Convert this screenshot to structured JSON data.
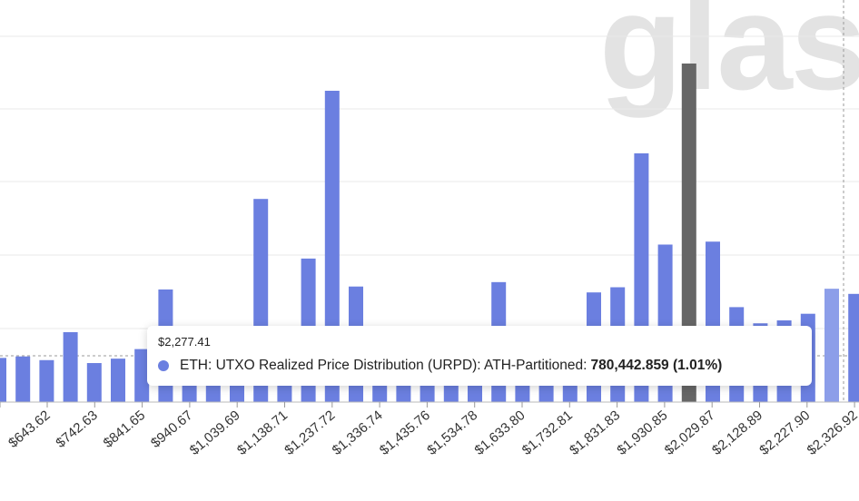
{
  "watermark": "glass",
  "colors": {
    "bar": "#6b7fe0",
    "bar_highlight": "#666666",
    "bar_partial": "#8c9ee9",
    "grid": "#e8e8e8"
  },
  "tooltip": {
    "x_value": "$2,277.41",
    "series_label": "ETH: UTXO Realized Price Distribution (URPD): ATH-Partitioned:",
    "value": "780,442.859 (1.01%)"
  },
  "chart_data": {
    "type": "bar",
    "title": "",
    "xlabel": "",
    "ylabel": "",
    "grid": true,
    "highlight_index": 29,
    "ylim": [
      0,
      100
    ],
    "tick_labels": [
      "$643.62",
      "$742.63",
      "$841.65",
      "$940.67",
      "$1,039.69",
      "$1,138.71",
      "$1,237.72",
      "$1,336.74",
      "$1,435.76",
      "$1,534.78",
      "$1,633.80",
      "$1,732.81",
      "$1,831.83",
      "$1,930.85",
      "$2,029.87",
      "$2,128.89",
      "$2,227.90",
      "$2,326.92"
    ],
    "values": [
      6,
      6.2,
      5.7,
      9.5,
      5.3,
      5.9,
      7.2,
      15.3,
      4.6,
      4.6,
      4.6,
      27.6,
      8.1,
      19.5,
      42.3,
      15.7,
      4.6,
      4.6,
      4.6,
      4.6,
      4.6,
      16.3,
      4.6,
      4.6,
      4.6,
      14.9,
      15.6,
      33.8,
      21.4,
      46.0,
      21.8,
      12.9,
      10.7,
      11.1,
      12.0,
      15.4,
      14.7
    ]
  }
}
